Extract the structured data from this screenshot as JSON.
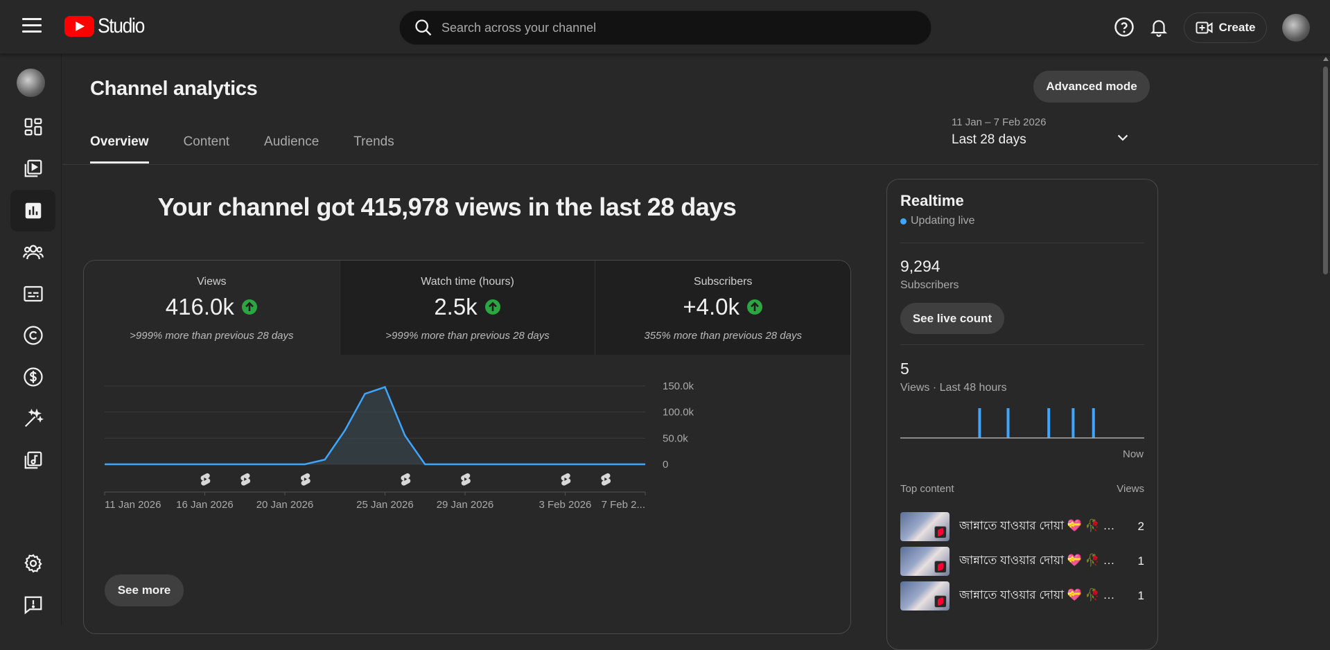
{
  "header": {
    "logo_text": "Studio",
    "search_placeholder": "Search across your channel",
    "create_label": "Create"
  },
  "page": {
    "title": "Channel analytics",
    "advanced_mode_label": "Advanced mode",
    "tabs": [
      {
        "label": "Overview",
        "active": true
      },
      {
        "label": "Content",
        "active": false
      },
      {
        "label": "Audience",
        "active": false
      },
      {
        "label": "Trends",
        "active": false
      }
    ],
    "date_range": {
      "range": "11 Jan – 7 Feb 2026",
      "label": "Last 28 days"
    },
    "headline": "Your channel got 415,978 views in the last 28 days"
  },
  "metrics": [
    {
      "label": "Views",
      "value": "416.0k",
      "note": ">999% more than previous 28 days"
    },
    {
      "label": "Watch time (hours)",
      "value": "2.5k",
      "note": ">999% more than previous 28 days"
    },
    {
      "label": "Subscribers",
      "value": "+4.0k",
      "note": "355% more than previous 28 days"
    }
  ],
  "chart_data": {
    "type": "area",
    "x": [
      "11 Jan",
      "12 Jan",
      "13 Jan",
      "14 Jan",
      "15 Jan",
      "16 Jan",
      "17 Jan",
      "18 Jan",
      "19 Jan",
      "20 Jan",
      "21 Jan",
      "22 Jan",
      "23 Jan",
      "24 Jan",
      "25 Jan",
      "26 Jan",
      "27 Jan",
      "28 Jan",
      "29 Jan",
      "30 Jan",
      "31 Jan",
      "1 Feb",
      "2 Feb",
      "3 Feb",
      "4 Feb",
      "5 Feb",
      "6 Feb",
      "7 Feb"
    ],
    "series": [
      {
        "values": [
          0,
          0,
          0,
          0,
          0,
          0,
          0,
          0,
          0,
          0,
          0,
          9000,
          65000,
          135000,
          148000,
          55000,
          0,
          0,
          0,
          0,
          0,
          0,
          0,
          0,
          0,
          0,
          0,
          0
        ]
      }
    ],
    "xticks": [
      "11 Jan 2026",
      "16 Jan 2026",
      "20 Jan 2026",
      "25 Jan 2026",
      "29 Jan 2026",
      "3 Feb 2026",
      "7 Feb 2..."
    ],
    "yticks": [
      "0",
      "50.0k",
      "100.0k",
      "150.0k"
    ],
    "ylim": [
      0,
      150000
    ],
    "grid": true,
    "accent": "#3ea6ff",
    "upload_markers_days": [
      5,
      7,
      10,
      15,
      18,
      23,
      25
    ]
  },
  "see_more_label": "See more",
  "realtime": {
    "title": "Realtime",
    "status": "Updating live",
    "subscribers_value": "9,294",
    "subscribers_label": "Subscribers",
    "live_count_label": "See live count",
    "views_value": "5",
    "views_label": "Views · Last 48 hours",
    "now_label": "Now",
    "mini_bars": [
      0,
      0,
      0,
      0,
      0,
      0,
      0,
      0,
      0,
      0,
      0,
      0,
      0,
      0,
      0,
      0,
      0,
      0,
      0,
      1,
      0,
      0,
      0,
      0,
      0,
      0,
      1,
      0,
      0,
      0,
      0,
      0,
      0,
      0,
      0,
      0,
      1,
      0,
      0,
      0,
      0,
      0,
      1,
      0,
      0,
      0,
      0,
      1,
      0,
      0,
      0,
      0,
      0,
      0,
      0,
      0,
      0,
      0,
      0,
      0
    ],
    "top_content_label": "Top content",
    "views_col_label": "Views",
    "top_content": [
      {
        "title": "জান্নাতে যাওয়ার দোয়া 💝 🥀 #shorts",
        "views": "2"
      },
      {
        "title": "জান্নাতে যাওয়ার দোয়া 💝 🥀 #shorts",
        "views": "1"
      },
      {
        "title": "জান্নাতে যাওয়ার দোয়া 💝 🥀 #shorts",
        "views": "1"
      }
    ]
  },
  "colors": {
    "background": "#282828",
    "accent": "#3ea6ff",
    "up_green": "#2ba640",
    "brand_red": "#ff0000"
  }
}
